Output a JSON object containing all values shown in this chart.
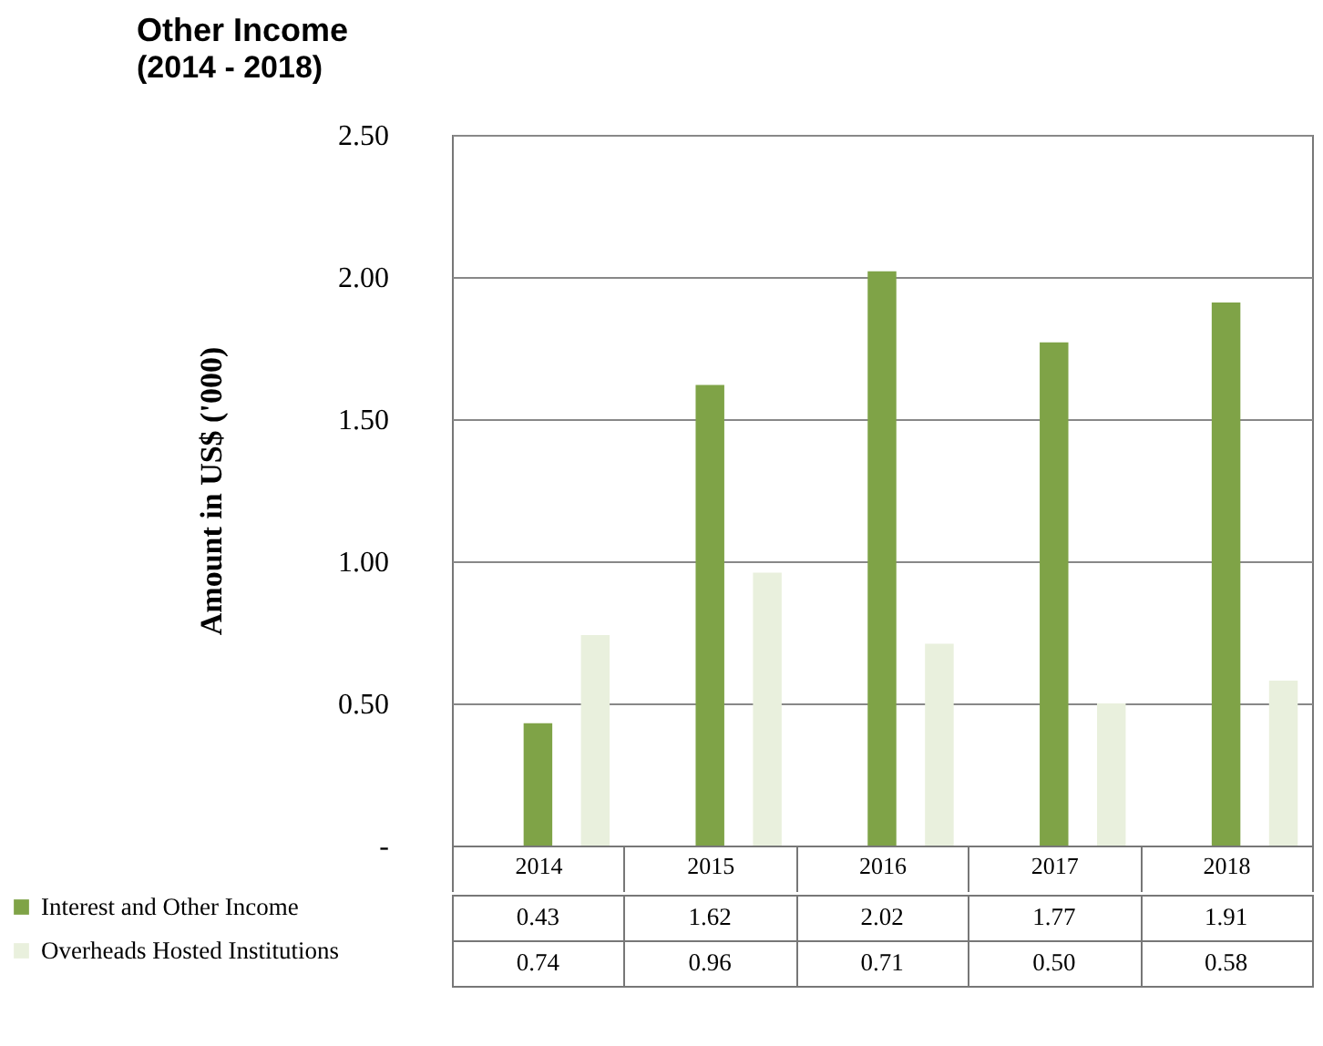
{
  "chart_data": {
    "type": "bar",
    "title": "Other Income",
    "subtitle": "(2014 - 2018)",
    "ylabel": "Amount in US$ ('000)",
    "categories": [
      "2014",
      "2015",
      "2016",
      "2017",
      "2018"
    ],
    "series": [
      {
        "name": "Interest and Other Income",
        "color": "#7fa347",
        "values": [
          0.43,
          1.62,
          2.02,
          1.77,
          1.91
        ],
        "value_labels": [
          "0.43",
          "1.62",
          "2.02",
          "1.77",
          "1.91"
        ]
      },
      {
        "name": "Overheads Hosted Institutions",
        "color": "#e9f0dd",
        "values": [
          0.74,
          0.96,
          0.71,
          0.5,
          0.58
        ],
        "value_labels": [
          "0.74",
          "0.96",
          "0.71",
          "0.50",
          "0.58"
        ]
      }
    ],
    "ylim": [
      0,
      2.5
    ],
    "yticks": [
      {
        "value": 0,
        "label": "-"
      },
      {
        "value": 0.5,
        "label": "0.50"
      },
      {
        "value": 1,
        "label": "1.00"
      },
      {
        "value": 1.5,
        "label": "1.50"
      },
      {
        "value": 2,
        "label": "2.00"
      },
      {
        "value": 2.5,
        "label": "2.50"
      }
    ],
    "grid": "y",
    "legend": "bottom"
  }
}
